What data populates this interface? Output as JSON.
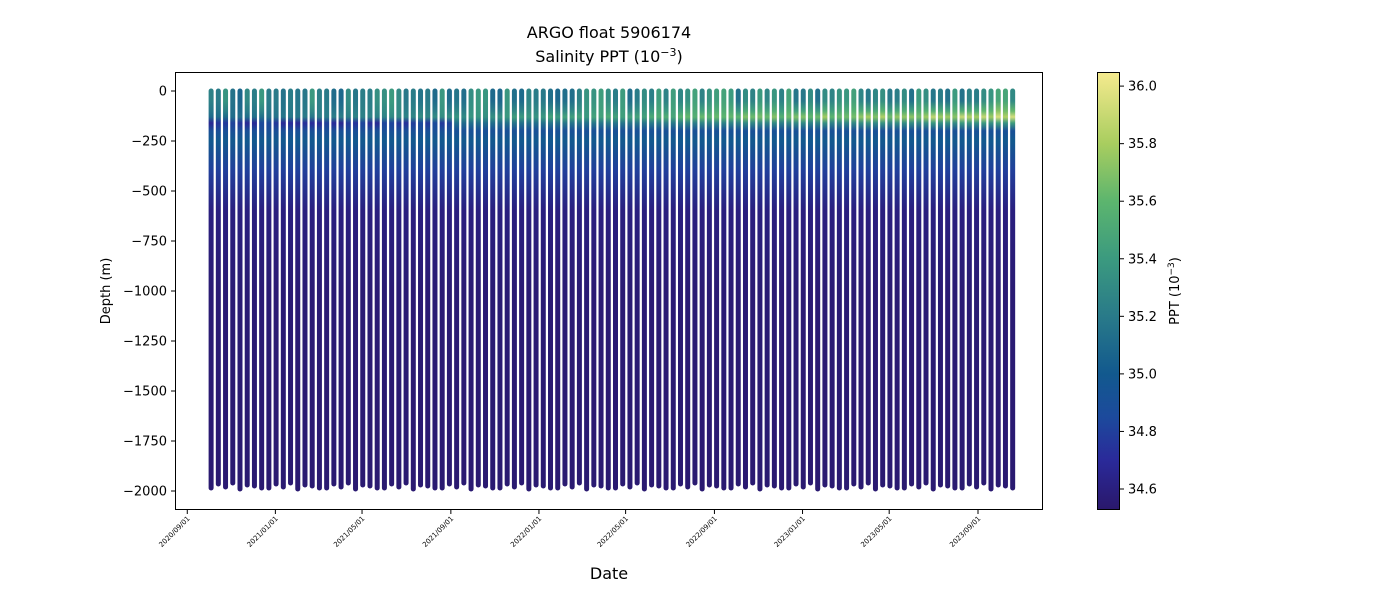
{
  "chart_data": {
    "type": "scatter",
    "title": "ARGO float 5906174",
    "subtitle_prefix": "Salinity PPT (10",
    "subtitle_exp": "−3",
    "subtitle_suffix": ")",
    "xlabel": "Date",
    "ylabel": "Depth (m)",
    "colorbar_label_prefix": "PPT (10",
    "colorbar_label_exp": "−3",
    "colorbar_label_suffix": ")",
    "colormap": "haline",
    "color_range": [
      34.527,
      36.049
    ],
    "colormap_stops": [
      [
        34.53,
        "#2a186c"
      ],
      [
        34.7,
        "#2a2a9a"
      ],
      [
        34.85,
        "#1c4a9c"
      ],
      [
        35.0,
        "#12598e"
      ],
      [
        35.2,
        "#297a89"
      ],
      [
        35.4,
        "#3b9a7f"
      ],
      [
        35.6,
        "#5cb56e"
      ],
      [
        35.8,
        "#a8cd5f"
      ],
      [
        36.05,
        "#f5ea8e"
      ]
    ],
    "x_range": [
      "2020-08-15",
      "2023-11-30"
    ],
    "y_range": [
      -2095,
      95
    ],
    "x_ticks": [
      "2020/09/01",
      "2021/01/01",
      "2021/05/01",
      "2021/09/01",
      "2022/01/01",
      "2022/05/01",
      "2022/09/01",
      "2023/01/01",
      "2023/05/01",
      "2023/09/01"
    ],
    "y_ticks": [
      0,
      -250,
      -500,
      -750,
      -1000,
      -1250,
      -1500,
      -1750,
      -2000
    ],
    "y_tick_labels": [
      "0",
      "−250",
      "−500",
      "−750",
      "−1000",
      "−1250",
      "−1500",
      "−1750",
      "−2000"
    ],
    "colorbar_ticks": [
      34.6,
      34.8,
      35.0,
      35.2,
      35.4,
      35.6,
      35.8,
      36.0
    ],
    "colorbar_tick_labels": [
      "34.6",
      "34.8",
      "35.0",
      "35.2",
      "35.4",
      "35.6",
      "35.8",
      "36.0"
    ],
    "profiles": {
      "first_date": "2020-10-04",
      "interval_days": 10,
      "count": 112,
      "surface_depth": 0,
      "max_depths_cycle": [
        -1985,
        -1965,
        -1980,
        -1960,
        -1990,
        -1970,
        -1975,
        -1985
      ],
      "typical_profile": {
        "depth": [
          0,
          -50,
          -100,
          -130,
          -160,
          -200,
          -250,
          -400,
          -600,
          -1000,
          -2000
        ],
        "salinity": [
          35.3,
          35.35,
          35.4,
          35.6,
          35.3,
          34.9,
          35.0,
          34.8,
          34.6,
          34.56,
          34.55
        ]
      },
      "subsurface_max_trend": {
        "start": 35.1,
        "end": 36.0
      }
    }
  }
}
